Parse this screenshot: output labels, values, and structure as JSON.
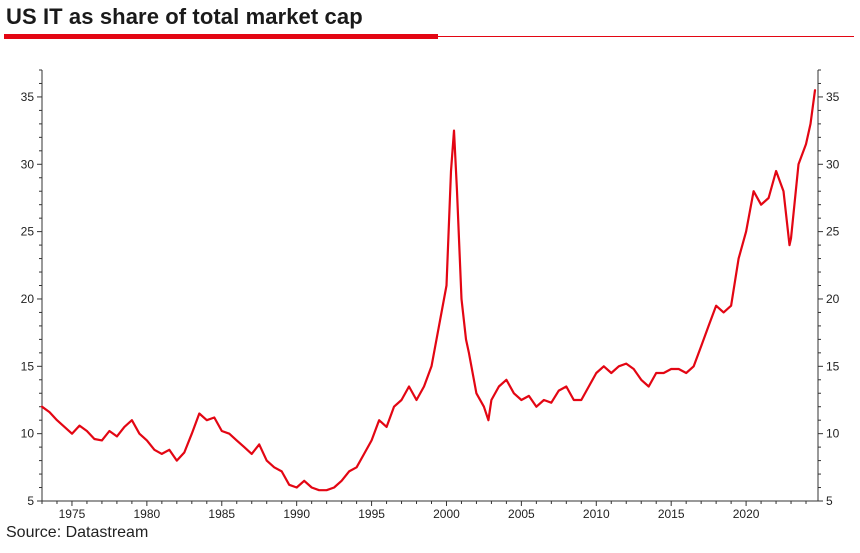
{
  "title": "US IT as share of total market cap",
  "source": "Source: Datastream",
  "colors": {
    "accent": "#e30613",
    "line": "#e30613",
    "axis": "#333333"
  },
  "chart_data": {
    "type": "line",
    "title": "US IT as share of total market cap",
    "xlabel": "",
    "ylabel": "",
    "xlim": [
      1973,
      2024.8
    ],
    "ylim": [
      5,
      37
    ],
    "x_ticks": [
      1975,
      1980,
      1985,
      1990,
      1995,
      2000,
      2005,
      2010,
      2015,
      2020
    ],
    "y_ticks": [
      5,
      10,
      15,
      20,
      25,
      30,
      35
    ],
    "grid": false,
    "secondary_y_axis": true,
    "series": [
      {
        "name": "",
        "x": [
          1973.0,
          1973.5,
          1974.0,
          1974.5,
          1975.0,
          1975.5,
          1976.0,
          1976.5,
          1977.0,
          1977.5,
          1978.0,
          1978.5,
          1979.0,
          1979.5,
          1980.0,
          1980.5,
          1981.0,
          1981.5,
          1982.0,
          1982.5,
          1983.0,
          1983.5,
          1984.0,
          1984.5,
          1985.0,
          1985.5,
          1986.0,
          1986.5,
          1987.0,
          1987.5,
          1988.0,
          1988.5,
          1989.0,
          1989.5,
          1990.0,
          1990.5,
          1991.0,
          1991.5,
          1992.0,
          1992.5,
          1993.0,
          1993.5,
          1994.0,
          1994.5,
          1995.0,
          1995.5,
          1996.0,
          1996.5,
          1997.0,
          1997.5,
          1998.0,
          1998.5,
          1999.0,
          1999.5,
          2000.0,
          2000.3,
          2000.5,
          2000.7,
          2001.0,
          2001.3,
          2001.5,
          2002.0,
          2002.5,
          2002.8,
          2003.0,
          2003.5,
          2004.0,
          2004.5,
          2005.0,
          2005.5,
          2006.0,
          2006.5,
          2007.0,
          2007.5,
          2008.0,
          2008.5,
          2009.0,
          2009.5,
          2010.0,
          2010.5,
          2011.0,
          2011.5,
          2012.0,
          2012.5,
          2013.0,
          2013.5,
          2014.0,
          2014.5,
          2015.0,
          2015.5,
          2016.0,
          2016.5,
          2017.0,
          2017.5,
          2018.0,
          2018.5,
          2019.0,
          2019.5,
          2020.0,
          2020.5,
          2021.0,
          2021.5,
          2022.0,
          2022.5,
          2022.9,
          2023.0,
          2023.5,
          2024.0,
          2024.3,
          2024.6
        ],
        "y": [
          12.0,
          11.6,
          11.0,
          10.5,
          10.0,
          10.6,
          10.2,
          9.6,
          9.5,
          10.2,
          9.8,
          10.5,
          11.0,
          10.0,
          9.5,
          8.8,
          8.5,
          8.8,
          8.0,
          8.6,
          10.0,
          11.5,
          11.0,
          11.2,
          10.2,
          10.0,
          9.5,
          9.0,
          8.5,
          9.2,
          8.0,
          7.5,
          7.2,
          6.2,
          6.0,
          6.5,
          6.0,
          5.8,
          5.8,
          6.0,
          6.5,
          7.2,
          7.5,
          8.5,
          9.5,
          11.0,
          10.5,
          12.0,
          12.5,
          13.5,
          12.5,
          13.5,
          15.0,
          18.0,
          21.0,
          29.5,
          32.5,
          28.0,
          20.0,
          17.0,
          16.0,
          13.0,
          12.0,
          11.0,
          12.5,
          13.5,
          14.0,
          13.0,
          12.5,
          12.8,
          12.0,
          12.5,
          12.3,
          13.2,
          13.5,
          12.5,
          12.5,
          13.5,
          14.5,
          15.0,
          14.5,
          15.0,
          15.2,
          14.8,
          14.0,
          13.5,
          14.5,
          14.5,
          14.8,
          14.8,
          14.5,
          15.0,
          16.5,
          18.0,
          19.5,
          19.0,
          19.5,
          23.0,
          25.0,
          28.0,
          27.0,
          27.5,
          29.5,
          28.0,
          24.0,
          24.5,
          30.0,
          31.5,
          33.0,
          35.5
        ]
      }
    ]
  }
}
